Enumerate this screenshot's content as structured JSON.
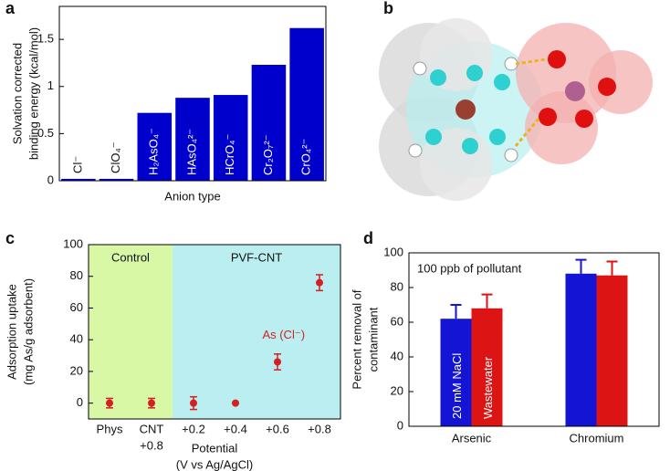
{
  "chart_data": [
    {
      "type": "bar",
      "label": "a",
      "ylabel": [
        "Solvation corrected",
        "binding energy (kcal/mol)"
      ],
      "xlabel": "Anion type",
      "categories": [
        "Cl⁻",
        "ClO₄⁻",
        "H₂AsO₄⁻",
        "HAsO₄²⁻",
        "HCrO₄⁻",
        "Cr₂O₇²⁻",
        "CrO₄²⁻"
      ],
      "values": [
        0.02,
        0.02,
        0.72,
        0.88,
        0.91,
        1.23,
        1.62
      ],
      "color": "#0000cc",
      "ylim": [
        0,
        1.85
      ],
      "yticks": [
        0,
        0.5,
        1,
        1.5
      ],
      "grid": false
    },
    {
      "type": "scatter",
      "label": "c",
      "ylabel": [
        "Adsorption uptake",
        "(mg As/g adsorbent)"
      ],
      "xlabel": [
        "Potential",
        "(V vs Ag/AgCl)"
      ],
      "categories": [
        "Phys",
        [
          "CNT",
          "+0.8"
        ],
        "+0.2",
        "+0.4",
        "+0.6",
        "+0.8"
      ],
      "series": [
        {
          "name": "As (Cl⁻)",
          "color": "#d42020",
          "values": [
            0,
            0,
            0,
            0,
            26,
            76
          ],
          "errors": [
            3,
            3,
            4,
            0,
            5,
            5
          ]
        }
      ],
      "regions": [
        {
          "label": "Control",
          "color": "#d9f8a6"
        },
        {
          "label": "PVF-CNT",
          "color": "#bbeef0"
        }
      ],
      "ylim": [
        -10,
        100
      ],
      "yticks": [
        0,
        20,
        40,
        60,
        80,
        100
      ],
      "grid": false
    },
    {
      "type": "bar",
      "label": "d",
      "ylabel": [
        "Percent removal of",
        "contaminant"
      ],
      "annotation": "100 ppb of pollutant",
      "categories": [
        "Arsenic",
        "Chromium"
      ],
      "series": [
        {
          "name": "20 mM NaCl",
          "color": "#1414d4",
          "values": [
            62,
            88
          ],
          "errors": [
            8,
            8
          ]
        },
        {
          "name": "Wastewater",
          "color": "#dc1414",
          "values": [
            68,
            87
          ],
          "errors": [
            8,
            8
          ]
        }
      ],
      "ylim": [
        0,
        100
      ],
      "yticks": [
        0,
        20,
        40,
        60,
        80,
        100
      ],
      "grid": false
    }
  ],
  "image_panel": {
    "label": "b"
  }
}
